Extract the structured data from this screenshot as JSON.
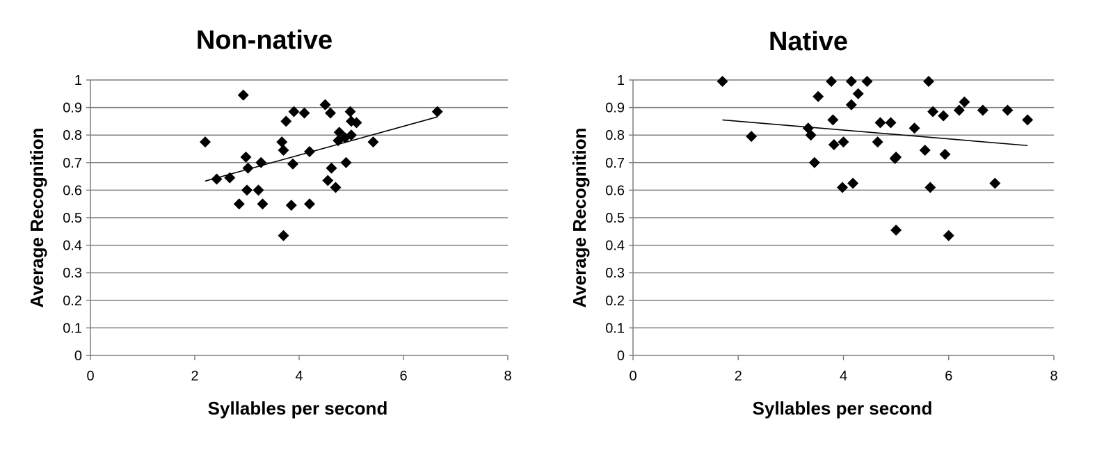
{
  "chart_data": [
    {
      "type": "scatter",
      "title": "Non-native",
      "xlabel": "Syllables per second",
      "ylabel": "Average Recognition",
      "xlim": [
        0,
        8
      ],
      "ylim": [
        0,
        1
      ],
      "x_ticks": [
        "0",
        "2",
        "4",
        "6",
        "8"
      ],
      "y_ticks": [
        "0",
        "0.1",
        "0.2",
        "0.3",
        "0.4",
        "0.5",
        "0.6",
        "0.7",
        "0.8",
        "0.9",
        "1"
      ],
      "grid": "horizontal",
      "marker": "diamond",
      "trendline": {
        "x": [
          2.2,
          6.65
        ],
        "y": [
          0.633,
          0.866
        ]
      },
      "points": [
        [
          2.2,
          0.775
        ],
        [
          2.42,
          0.64
        ],
        [
          2.67,
          0.645
        ],
        [
          2.85,
          0.55
        ],
        [
          2.93,
          0.945
        ],
        [
          2.98,
          0.72
        ],
        [
          3.0,
          0.6
        ],
        [
          3.02,
          0.68
        ],
        [
          3.22,
          0.6
        ],
        [
          3.27,
          0.7
        ],
        [
          3.3,
          0.55
        ],
        [
          3.67,
          0.775
        ],
        [
          3.7,
          0.745
        ],
        [
          3.7,
          0.435
        ],
        [
          3.75,
          0.85
        ],
        [
          3.85,
          0.545
        ],
        [
          3.88,
          0.695
        ],
        [
          3.9,
          0.885
        ],
        [
          4.1,
          0.88
        ],
        [
          4.2,
          0.74
        ],
        [
          4.2,
          0.55
        ],
        [
          4.5,
          0.91
        ],
        [
          4.55,
          0.635
        ],
        [
          4.6,
          0.88
        ],
        [
          4.62,
          0.68
        ],
        [
          4.7,
          0.61
        ],
        [
          4.75,
          0.78
        ],
        [
          4.77,
          0.81
        ],
        [
          4.88,
          0.79
        ],
        [
          4.9,
          0.7
        ],
        [
          4.98,
          0.885
        ],
        [
          5.0,
          0.85
        ],
        [
          5.0,
          0.8
        ],
        [
          5.1,
          0.845
        ],
        [
          5.42,
          0.775
        ],
        [
          6.65,
          0.885
        ]
      ]
    },
    {
      "type": "scatter",
      "title": "Native",
      "xlabel": "Syllables per second",
      "ylabel": "Average Recognition",
      "xlim": [
        0,
        8
      ],
      "ylim": [
        0,
        1
      ],
      "x_ticks": [
        "0",
        "2",
        "4",
        "6",
        "8"
      ],
      "y_ticks": [
        "0",
        "0.1",
        "0.2",
        "0.3",
        "0.4",
        "0.5",
        "0.6",
        "0.7",
        "0.8",
        "0.9",
        "1"
      ],
      "grid": "horizontal",
      "marker": "diamond",
      "trendline": {
        "x": [
          1.7,
          7.5
        ],
        "y": [
          0.855,
          0.762
        ]
      },
      "points": [
        [
          1.7,
          0.995
        ],
        [
          2.25,
          0.795
        ],
        [
          3.33,
          0.825
        ],
        [
          3.38,
          0.8
        ],
        [
          3.45,
          0.7
        ],
        [
          3.52,
          0.94
        ],
        [
          3.77,
          0.995
        ],
        [
          3.8,
          0.855
        ],
        [
          3.82,
          0.765
        ],
        [
          3.98,
          0.61
        ],
        [
          4.0,
          0.775
        ],
        [
          4.15,
          0.995
        ],
        [
          4.15,
          0.91
        ],
        [
          4.18,
          0.625
        ],
        [
          4.28,
          0.95
        ],
        [
          4.45,
          0.995
        ],
        [
          4.65,
          0.775
        ],
        [
          4.7,
          0.845
        ],
        [
          4.9,
          0.845
        ],
        [
          4.98,
          0.715
        ],
        [
          5.0,
          0.72
        ],
        [
          5.0,
          0.455
        ],
        [
          5.35,
          0.825
        ],
        [
          5.55,
          0.745
        ],
        [
          5.62,
          0.995
        ],
        [
          5.65,
          0.61
        ],
        [
          5.7,
          0.885
        ],
        [
          5.9,
          0.87
        ],
        [
          5.93,
          0.73
        ],
        [
          6.0,
          0.435
        ],
        [
          6.2,
          0.89
        ],
        [
          6.3,
          0.92
        ],
        [
          6.65,
          0.89
        ],
        [
          6.88,
          0.625
        ],
        [
          7.12,
          0.89
        ],
        [
          7.5,
          0.855
        ]
      ]
    }
  ]
}
